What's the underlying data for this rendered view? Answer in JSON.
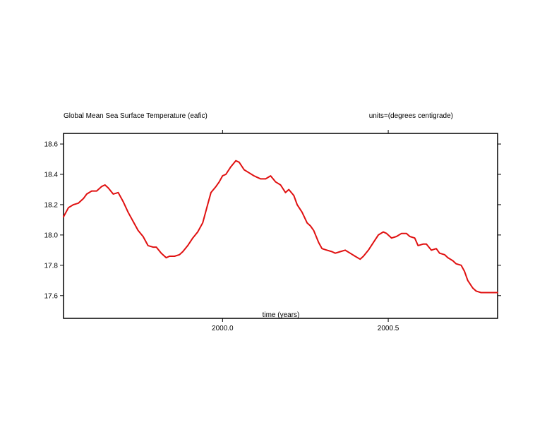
{
  "chart_data": {
    "type": "line",
    "title": "Global Mean Sea Surface Temperature (eafic)",
    "units_label": "units=(degrees centigrade)",
    "xlabel": "time (years)",
    "ylabel": "",
    "xlim": [
      1999.52,
      2000.83
    ],
    "ylim": [
      17.45,
      18.67
    ],
    "x_ticks": [
      2000.0,
      2000.5
    ],
    "x_tick_labels": [
      "2000.0",
      "2000.5"
    ],
    "y_ticks": [
      17.6,
      17.8,
      18.0,
      18.2,
      18.4,
      18.6
    ],
    "y_tick_labels": [
      "17.6",
      "17.8",
      "18.0",
      "18.2",
      "18.4",
      "18.6"
    ],
    "grid": false,
    "legend": "none",
    "series": [
      {
        "color": "#e01010",
        "x": [
          1999.52,
          1999.535,
          1999.55,
          1999.565,
          1999.58,
          1999.59,
          1999.605,
          1999.62,
          1999.635,
          1999.645,
          1999.655,
          1999.67,
          1999.685,
          1999.7,
          1999.715,
          1999.73,
          1999.745,
          1999.76,
          1999.775,
          1999.79,
          1999.8,
          1999.815,
          1999.83,
          1999.84,
          1999.855,
          1999.87,
          1999.88,
          1999.895,
          1999.91,
          1999.925,
          1999.94,
          1999.955,
          1999.965,
          1999.98,
          1999.99,
          2000.0,
          2000.01,
          2000.025,
          2000.04,
          2000.05,
          2000.065,
          2000.08,
          2000.095,
          2000.105,
          2000.115,
          2000.13,
          2000.145,
          2000.16,
          2000.175,
          2000.19,
          2000.2,
          2000.215,
          2000.225,
          2000.24,
          2000.255,
          2000.265,
          2000.275,
          2000.29,
          2000.3,
          2000.315,
          2000.33,
          2000.34,
          2000.355,
          2000.37,
          2000.385,
          2000.4,
          2000.415,
          2000.425,
          2000.44,
          2000.455,
          2000.47,
          2000.485,
          2000.495,
          2000.51,
          2000.525,
          2000.54,
          2000.555,
          2000.565,
          2000.58,
          2000.59,
          2000.605,
          2000.615,
          2000.63,
          2000.645,
          2000.655,
          2000.67,
          2000.68,
          2000.695,
          2000.705,
          2000.72,
          2000.73,
          2000.74,
          2000.755,
          2000.765,
          2000.78,
          2000.79,
          2000.805,
          2000.82,
          2000.83
        ],
        "y": [
          18.12,
          18.18,
          18.2,
          18.21,
          18.24,
          18.27,
          18.29,
          18.29,
          18.32,
          18.33,
          18.31,
          18.27,
          18.28,
          18.22,
          18.15,
          18.09,
          18.03,
          17.99,
          17.93,
          17.92,
          17.92,
          17.88,
          17.85,
          17.86,
          17.86,
          17.87,
          17.89,
          17.93,
          17.98,
          18.02,
          18.08,
          18.2,
          18.28,
          18.32,
          18.35,
          18.39,
          18.4,
          18.45,
          18.49,
          18.48,
          18.43,
          18.41,
          18.39,
          18.38,
          18.37,
          18.37,
          18.39,
          18.35,
          18.33,
          18.28,
          18.3,
          18.26,
          18.2,
          18.15,
          18.08,
          18.06,
          18.03,
          17.95,
          17.91,
          17.9,
          17.89,
          17.88,
          17.89,
          17.9,
          17.88,
          17.86,
          17.84,
          17.86,
          17.9,
          17.95,
          18.0,
          18.02,
          18.01,
          17.98,
          17.99,
          18.01,
          18.01,
          17.99,
          17.98,
          17.93,
          17.94,
          17.94,
          17.9,
          17.91,
          17.88,
          17.87,
          17.85,
          17.83,
          17.81,
          17.8,
          17.76,
          17.7,
          17.65,
          17.63,
          17.62,
          17.62,
          17.62,
          17.62,
          17.62
        ]
      }
    ]
  }
}
